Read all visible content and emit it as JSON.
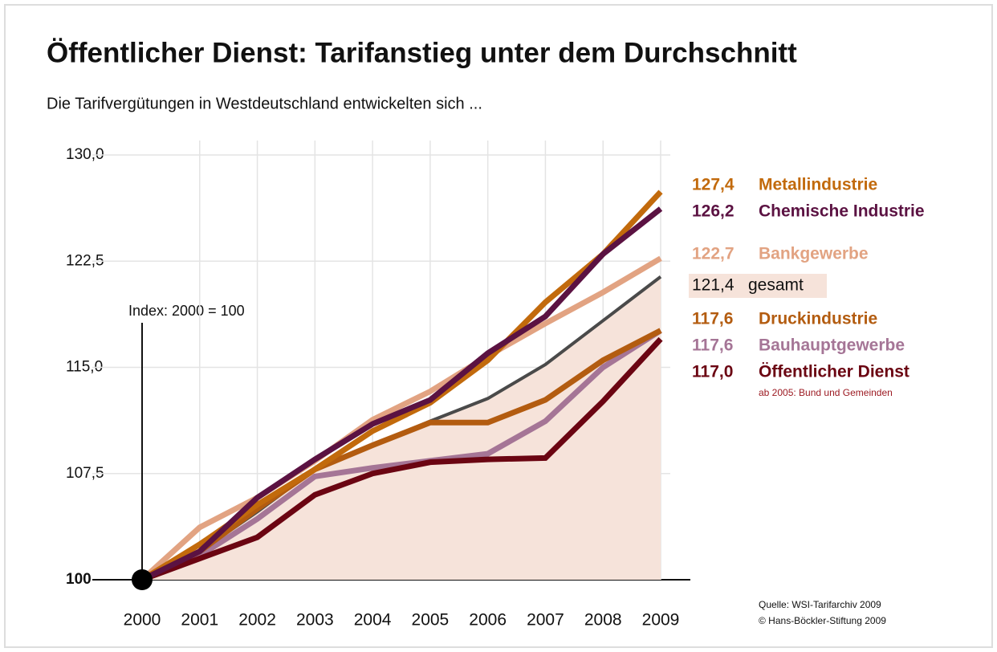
{
  "chart_data": {
    "type": "line",
    "title": "Öffentlicher Dienst: Tarifanstieg unter dem Durchschnitt",
    "subtitle": "Die Tarifvergütungen in Westdeutschland entwickelten sich ...",
    "annotations": [
      "Index: 2000 = 100",
      "ab 2005: Bund und Gemeinden"
    ],
    "source": [
      "Quelle: WSI-Tarifarchiv 2009",
      "© Hans-Böckler-Stiftung 2009"
    ],
    "categories": [
      "2000",
      "2001",
      "2002",
      "2003",
      "2004",
      "2005",
      "2006",
      "2007",
      "2008",
      "2009"
    ],
    "ylim": [
      100,
      130
    ],
    "yticks": [
      100,
      {
        "value": 107.5,
        "label": "107,5"
      },
      {
        "value": 115,
        "label": "115,0"
      },
      {
        "value": 122.5,
        "label": "122,5"
      },
      {
        "value": 130,
        "label": "130,0"
      }
    ],
    "grid": true,
    "area_series": "gesamt",
    "series": [
      {
        "name": "Bankgewerbe",
        "color": "#e2a382",
        "values": [
          100,
          103.7,
          105.8,
          108.4,
          111.3,
          113.3,
          115.8,
          118.1,
          120.3,
          122.7
        ],
        "value_labels": [
          null,
          null,
          null,
          null,
          null,
          null,
          null,
          null,
          null,
          "122,7"
        ]
      },
      {
        "name": "gesamt",
        "color": "#4a4a4a",
        "values": [
          100,
          102,
          104.8,
          107.8,
          109.5,
          111.2,
          112.8,
          115.2,
          118.3,
          121.4
        ],
        "value_labels": [
          null,
          null,
          null,
          null,
          null,
          null,
          null,
          null,
          null,
          "121,4"
        ]
      },
      {
        "name": "Bauhauptgewerbe",
        "color": "#a57596",
        "values": [
          100,
          101.7,
          104.3,
          107.3,
          107.9,
          108.4,
          108.9,
          111.2,
          115,
          117.6
        ],
        "value_labels": [
          null,
          null,
          null,
          null,
          null,
          null,
          null,
          null,
          null,
          "117,6"
        ]
      },
      {
        "name": "Druckindustrie",
        "color": "#b35c10",
        "values": [
          100,
          102,
          105,
          107.8,
          109.5,
          111.1,
          111.1,
          112.7,
          115.5,
          117.6
        ],
        "value_labels": [
          null,
          null,
          null,
          null,
          null,
          null,
          null,
          null,
          null,
          "117,6"
        ]
      },
      {
        "name": "Öffentlicher Dienst",
        "color": "#6b0512",
        "values": [
          100,
          101.5,
          103,
          106,
          107.5,
          108.3,
          108.5,
          108.6,
          112.6,
          117.0
        ],
        "value_labels": [
          null,
          null,
          null,
          null,
          null,
          null,
          null,
          null,
          null,
          "117,0"
        ]
      },
      {
        "name": "Metallindustrie",
        "color": "#c26a0c",
        "values": [
          100,
          102.5,
          105.3,
          107.8,
          110.5,
          112.5,
          115.5,
          119.6,
          123,
          127.4
        ],
        "value_labels": [
          null,
          null,
          null,
          null,
          null,
          null,
          null,
          null,
          null,
          "127,4"
        ]
      },
      {
        "name": "Chemische Industrie",
        "color": "#5b1242",
        "values": [
          100,
          102,
          105.8,
          108.5,
          111,
          112.7,
          116,
          118.6,
          123,
          126.2
        ],
        "value_labels": [
          null,
          null,
          null,
          null,
          null,
          null,
          null,
          null,
          null,
          "126,2"
        ]
      }
    ]
  }
}
